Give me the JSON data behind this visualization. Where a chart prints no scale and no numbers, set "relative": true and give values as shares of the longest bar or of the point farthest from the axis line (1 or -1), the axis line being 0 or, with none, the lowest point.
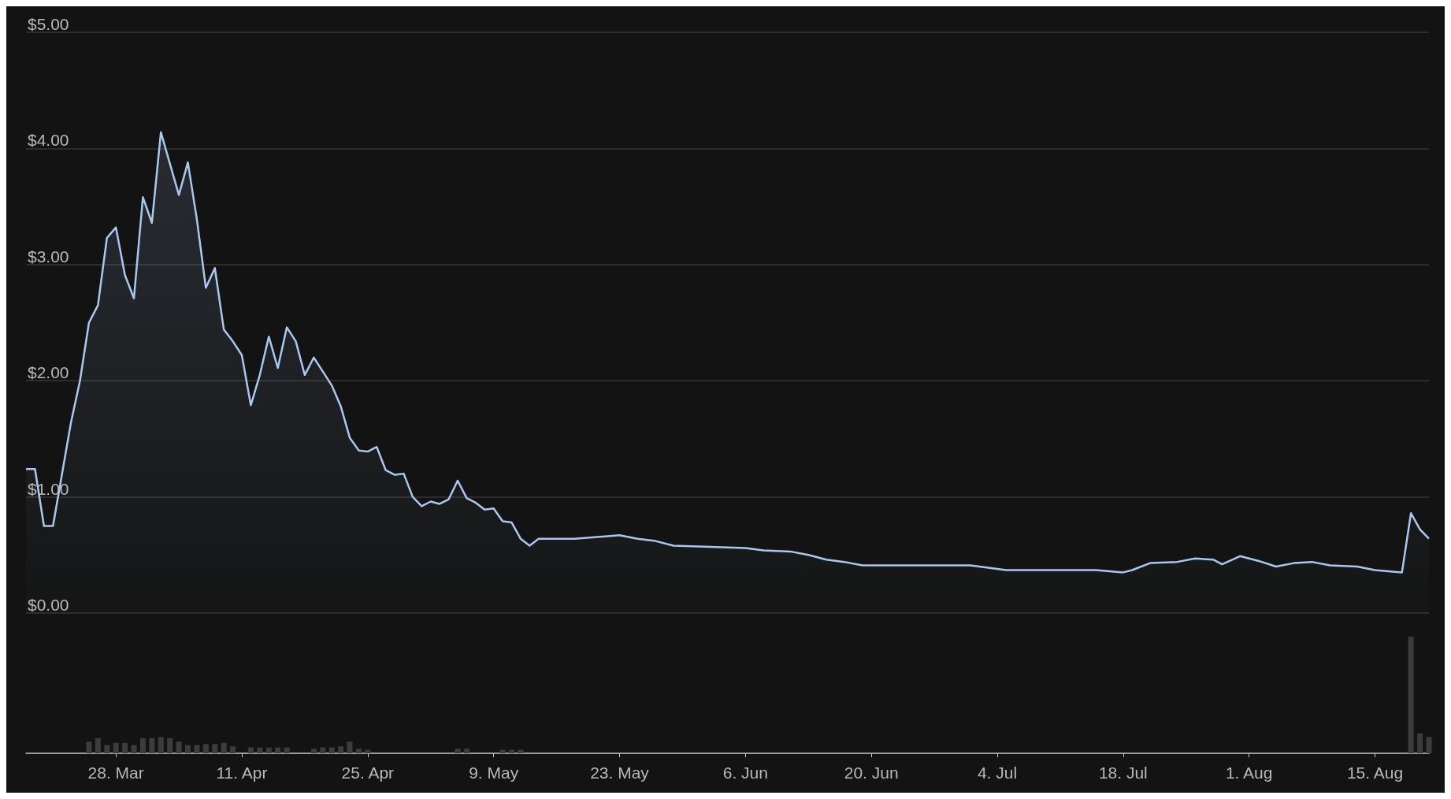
{
  "chart_data": [
    {
      "type": "area",
      "x": [
        "--03-18",
        "--03-19",
        "--03-20",
        "--03-21",
        "--03-23",
        "--03-24",
        "--03-25",
        "--03-26",
        "--03-27",
        "--03-28",
        "--03-29",
        "--03-30",
        "--03-31",
        "--04-01",
        "--04-02",
        "--04-03",
        "--04-04",
        "--04-05",
        "--04-06",
        "--04-07",
        "--04-08",
        "--04-09",
        "--04-10",
        "--04-11",
        "--04-12",
        "--04-13",
        "--04-14",
        "--04-15",
        "--04-16",
        "--04-17",
        "--04-18",
        "--04-19",
        "--04-20",
        "--04-21",
        "--04-22",
        "--04-23",
        "--04-24",
        "--04-25",
        "--04-26",
        "--04-27",
        "--04-28",
        "--04-29",
        "--04-30",
        "--05-01",
        "--05-02",
        "--05-03",
        "--05-04",
        "--05-05",
        "--05-06",
        "--05-07",
        "--05-08",
        "--05-09",
        "--05-10",
        "--05-11",
        "--05-12",
        "--05-13",
        "--05-14",
        "--05-18",
        "--05-23",
        "--05-25",
        "--05-27",
        "--05-29",
        "--06-02",
        "--06-06",
        "--06-08",
        "--06-11",
        "--06-13",
        "--06-15",
        "--06-17",
        "--06-19",
        "--06-21",
        "--07-01",
        "--07-03",
        "--07-05",
        "--07-15",
        "--07-18",
        "--07-19",
        "--07-21",
        "--07-24",
        "--07-26",
        "--07-28",
        "--07-29",
        "--07-31",
        "--08-02",
        "--08-04",
        "--08-06",
        "--08-08",
        "--08-10",
        "--08-13",
        "--08-15",
        "--08-18",
        "--08-19",
        "--08-20",
        "--08-21"
      ],
      "series": [
        {
          "color": "#a8c8f0",
          "values": [
            1.24,
            1.24,
            0.75,
            0.75,
            1.64,
            2.0,
            2.5,
            2.65,
            3.23,
            3.32,
            2.91,
            2.71,
            3.58,
            3.36,
            4.14,
            3.87,
            3.6,
            3.88,
            3.39,
            2.8,
            2.97,
            2.44,
            2.34,
            2.22,
            1.79,
            2.05,
            2.38,
            2.11,
            2.46,
            2.34,
            2.05,
            2.2,
            2.08,
            1.96,
            1.78,
            1.51,
            1.4,
            1.39,
            1.43,
            1.23,
            1.19,
            1.2,
            1.0,
            0.92,
            0.96,
            0.94,
            0.98,
            1.14,
            0.99,
            0.95,
            0.89,
            0.9,
            0.79,
            0.78,
            0.64,
            0.58,
            0.64,
            0.64,
            0.67,
            0.64,
            0.62,
            0.58,
            0.57,
            0.56,
            0.54,
            0.53,
            0.5,
            0.46,
            0.44,
            0.41,
            0.41,
            0.41,
            0.39,
            0.37,
            0.37,
            0.35,
            0.37,
            0.43,
            0.44,
            0.47,
            0.46,
            0.42,
            0.49,
            0.45,
            0.4,
            0.43,
            0.44,
            0.41,
            0.4,
            0.37,
            0.35,
            0.86,
            0.72,
            0.64
          ]
        }
      ],
      "xlim": [
        "--03-18",
        "--08-21"
      ],
      "xticks": [
        {
          "value": "--03-28",
          "label": "28. Mar"
        },
        {
          "value": "--04-11",
          "label": "11. Apr"
        },
        {
          "value": "--04-25",
          "label": "25. Apr"
        },
        {
          "value": "--05-09",
          "label": "9. May"
        },
        {
          "value": "--05-23",
          "label": "23. May"
        },
        {
          "value": "--06-06",
          "label": "6. Jun"
        },
        {
          "value": "--06-20",
          "label": "20. Jun"
        },
        {
          "value": "--07-04",
          "label": "4. Jul"
        },
        {
          "value": "--07-18",
          "label": "18. Jul"
        },
        {
          "value": "--08-01",
          "label": "1. Aug"
        },
        {
          "value": "--08-15",
          "label": "15. Aug"
        }
      ],
      "ylim": [
        0,
        5
      ],
      "yticks": [
        {
          "value": 0,
          "label": "$0.00"
        },
        {
          "value": 1,
          "label": "$1.00"
        },
        {
          "value": 2,
          "label": "$2.00"
        },
        {
          "value": 3,
          "label": "$3.00"
        },
        {
          "value": 4,
          "label": "$4.00"
        },
        {
          "value": 5,
          "label": "$5.00"
        }
      ],
      "grid": "y",
      "tick_labels": "y"
    },
    {
      "type": "bar",
      "relative": true,
      "x": [
        "--03-25",
        "--03-26",
        "--03-27",
        "--03-28",
        "--03-29",
        "--03-30",
        "--03-31",
        "--04-01",
        "--04-02",
        "--04-03",
        "--04-04",
        "--04-05",
        "--04-06",
        "--04-07",
        "--04-08",
        "--04-09",
        "--04-10",
        "--04-12",
        "--04-13",
        "--04-14",
        "--04-15",
        "--04-16",
        "--04-19",
        "--04-20",
        "--04-21",
        "--04-22",
        "--04-23",
        "--04-24",
        "--04-25",
        "--05-05",
        "--05-06",
        "--05-10",
        "--05-11",
        "--05-12",
        "--08-19",
        "--08-20",
        "--08-21"
      ],
      "series": [
        {
          "color": "#3c3c3c",
          "values": [
            0.1,
            0.13,
            0.07,
            0.09,
            0.09,
            0.07,
            0.13,
            0.13,
            0.14,
            0.13,
            0.1,
            0.07,
            0.07,
            0.08,
            0.08,
            0.09,
            0.06,
            0.05,
            0.05,
            0.05,
            0.05,
            0.05,
            0.04,
            0.05,
            0.05,
            0.06,
            0.1,
            0.04,
            0.03,
            0.04,
            0.04,
            0.03,
            0.03,
            0.03,
            1.0,
            0.17,
            0.14
          ]
        }
      ],
      "xlim": [
        "--03-18",
        "--08-21"
      ],
      "xticks": [
        {
          "value": "--03-28",
          "label": "28. Mar"
        },
        {
          "value": "--04-11",
          "label": "11. Apr"
        },
        {
          "value": "--04-25",
          "label": "25. Apr"
        },
        {
          "value": "--05-09",
          "label": "9. May"
        },
        {
          "value": "--05-23",
          "label": "23. May"
        },
        {
          "value": "--06-06",
          "label": "6. Jun"
        },
        {
          "value": "--06-20",
          "label": "20. Jun"
        },
        {
          "value": "--07-04",
          "label": "4. Jul"
        },
        {
          "value": "--07-18",
          "label": "18. Jul"
        },
        {
          "value": "--08-01",
          "label": "1. Aug"
        },
        {
          "value": "--08-15",
          "label": "15. Aug"
        }
      ],
      "grid": false,
      "tick_labels": "x"
    }
  ]
}
